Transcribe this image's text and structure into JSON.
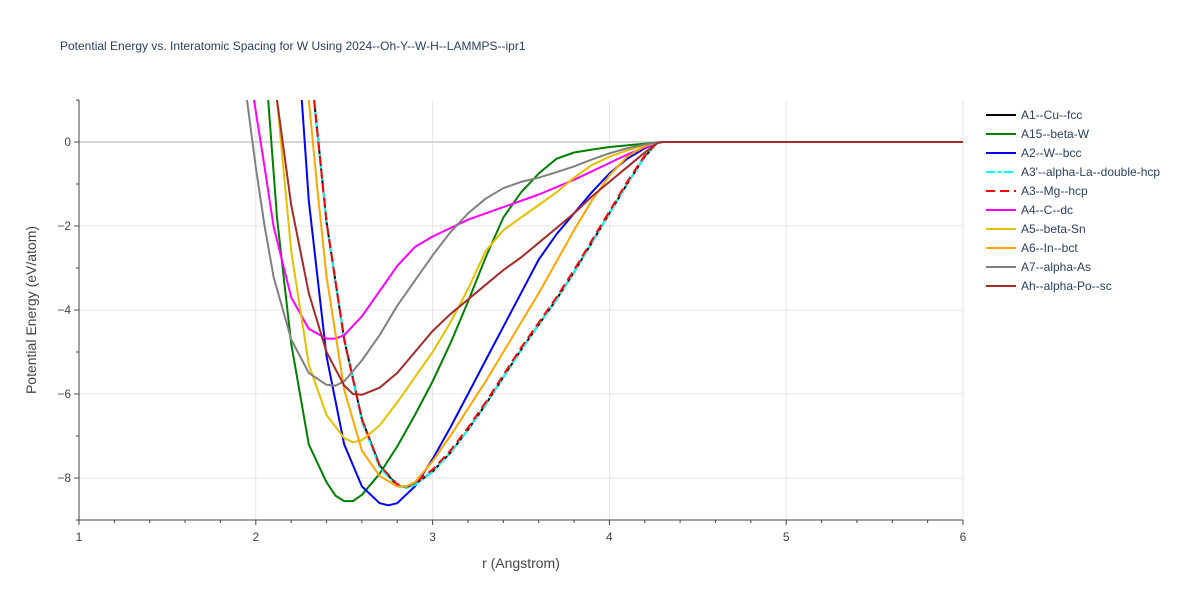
{
  "chart_data": {
    "type": "line",
    "title": "Potential Energy vs. Interatomic Spacing for W Using 2024--Oh-Y--W-H--LAMMPS--ipr1",
    "xlabel": "r (Angstrom)",
    "ylabel": "Potential Energy (eV/atom)",
    "xlim": [
      1,
      6
    ],
    "ylim": [
      -9,
      1
    ],
    "x_ticks": [
      1,
      2,
      3,
      4,
      5,
      6
    ],
    "y_ticks": [
      -8,
      -6,
      -4,
      -2,
      0
    ],
    "y_tick_labels": [
      "−8",
      "−6",
      "−4",
      "−2",
      "0"
    ],
    "grid": true,
    "legend_position": "right",
    "series": [
      {
        "name": "A1--Cu--fcc",
        "color": "#000000",
        "dash": "solid",
        "x": [
          2.33,
          2.4,
          2.5,
          2.6,
          2.7,
          2.8,
          2.85,
          2.9,
          3.0,
          3.1,
          3.2,
          3.3,
          3.4,
          3.5,
          3.6,
          3.7,
          3.8,
          3.9,
          4.0,
          4.1,
          4.2,
          4.27,
          4.3,
          6.0
        ],
        "y": [
          1.0,
          -1.9,
          -4.7,
          -6.6,
          -7.7,
          -8.18,
          -8.22,
          -8.15,
          -7.85,
          -7.4,
          -6.85,
          -6.25,
          -5.6,
          -4.95,
          -4.35,
          -3.75,
          -3.1,
          -2.4,
          -1.7,
          -1.0,
          -0.35,
          -0.02,
          0.0,
          0.0
        ]
      },
      {
        "name": "A15--beta-W",
        "color": "#008000",
        "dash": "solid",
        "x": [
          2.07,
          2.12,
          2.2,
          2.3,
          2.4,
          2.45,
          2.5,
          2.55,
          2.6,
          2.7,
          2.8,
          2.9,
          3.0,
          3.1,
          3.2,
          3.3,
          3.4,
          3.5,
          3.6,
          3.7,
          3.8,
          3.9,
          4.0,
          4.1,
          4.2,
          4.27,
          4.3,
          6.0
        ],
        "y": [
          1.0,
          -1.8,
          -4.8,
          -7.2,
          -8.1,
          -8.42,
          -8.55,
          -8.55,
          -8.4,
          -7.9,
          -7.25,
          -6.5,
          -5.7,
          -4.8,
          -3.8,
          -2.75,
          -1.8,
          -1.2,
          -0.75,
          -0.4,
          -0.25,
          -0.18,
          -0.12,
          -0.08,
          -0.04,
          -0.01,
          0.0,
          0.0
        ]
      },
      {
        "name": "A2--W--bcc",
        "color": "#0000ff",
        "dash": "solid",
        "x": [
          2.26,
          2.3,
          2.4,
          2.5,
          2.6,
          2.7,
          2.75,
          2.8,
          2.9,
          3.0,
          3.1,
          3.2,
          3.3,
          3.4,
          3.5,
          3.6,
          3.7,
          3.8,
          3.9,
          4.0,
          4.1,
          4.2,
          4.27,
          4.3,
          6.0
        ],
        "y": [
          1.0,
          -1.4,
          -5.1,
          -7.2,
          -8.2,
          -8.6,
          -8.65,
          -8.6,
          -8.2,
          -7.55,
          -6.8,
          -6.0,
          -5.2,
          -4.4,
          -3.6,
          -2.8,
          -2.2,
          -1.7,
          -1.2,
          -0.75,
          -0.4,
          -0.15,
          -0.02,
          0.0,
          0.0
        ]
      },
      {
        "name": "A3'--alpha-La--double-hcp",
        "color": "#00ffff",
        "dash": "dashdot",
        "x": [
          2.33,
          2.4,
          2.5,
          2.6,
          2.7,
          2.8,
          2.85,
          2.9,
          3.0,
          3.1,
          3.2,
          3.3,
          3.4,
          3.5,
          3.6,
          3.7,
          3.8,
          3.9,
          4.0,
          4.1,
          4.2,
          4.27,
          4.3,
          6.0
        ],
        "y": [
          1.0,
          -1.9,
          -4.7,
          -6.65,
          -7.75,
          -8.2,
          -8.24,
          -8.17,
          -7.85,
          -7.4,
          -6.85,
          -6.25,
          -5.6,
          -4.95,
          -4.35,
          -3.75,
          -3.1,
          -2.4,
          -1.7,
          -1.0,
          -0.35,
          -0.02,
          0.0,
          0.0
        ]
      },
      {
        "name": "A3--Mg--hcp",
        "color": "#ff0000",
        "dash": "dash",
        "x": [
          2.33,
          2.4,
          2.5,
          2.6,
          2.7,
          2.8,
          2.85,
          2.9,
          3.0,
          3.1,
          3.2,
          3.3,
          3.4,
          3.5,
          3.6,
          3.7,
          3.8,
          3.9,
          4.0,
          4.1,
          4.2,
          4.27,
          4.3,
          6.0
        ],
        "y": [
          1.0,
          -1.9,
          -4.7,
          -6.6,
          -7.7,
          -8.15,
          -8.2,
          -8.12,
          -7.8,
          -7.35,
          -6.8,
          -6.2,
          -5.55,
          -4.9,
          -4.3,
          -3.7,
          -3.05,
          -2.35,
          -1.65,
          -0.95,
          -0.32,
          -0.02,
          0.0,
          0.0
        ]
      },
      {
        "name": "A4--C--dc",
        "color": "#ff00ff",
        "dash": "solid",
        "x": [
          1.99,
          2.05,
          2.1,
          2.2,
          2.3,
          2.4,
          2.45,
          2.5,
          2.6,
          2.7,
          2.8,
          2.9,
          3.0,
          3.1,
          3.2,
          3.4,
          3.6,
          3.8,
          4.0,
          4.1,
          4.2,
          4.27,
          4.3,
          6.0
        ],
        "y": [
          1.0,
          -0.6,
          -2.0,
          -3.7,
          -4.45,
          -4.68,
          -4.68,
          -4.6,
          -4.15,
          -3.55,
          -2.95,
          -2.5,
          -2.25,
          -2.05,
          -1.85,
          -1.55,
          -1.25,
          -0.9,
          -0.5,
          -0.3,
          -0.13,
          -0.02,
          0.0,
          0.0
        ]
      },
      {
        "name": "A5--beta-Sn",
        "color": "#e6c000",
        "dash": "solid",
        "x": [
          2.12,
          2.2,
          2.3,
          2.4,
          2.5,
          2.55,
          2.6,
          2.7,
          2.8,
          2.9,
          3.0,
          3.1,
          3.2,
          3.3,
          3.4,
          3.5,
          3.6,
          3.7,
          3.8,
          3.9,
          4.0,
          4.1,
          4.2,
          4.27,
          4.3,
          6.0
        ],
        "y": [
          1.0,
          -2.6,
          -5.3,
          -6.5,
          -7.05,
          -7.15,
          -7.1,
          -6.75,
          -6.2,
          -5.6,
          -5.0,
          -4.3,
          -3.5,
          -2.6,
          -2.1,
          -1.8,
          -1.5,
          -1.2,
          -0.85,
          -0.55,
          -0.35,
          -0.2,
          -0.08,
          -0.01,
          0.0,
          0.0
        ]
      },
      {
        "name": "A6--In--bct",
        "color": "#ffa500",
        "dash": "solid",
        "x": [
          2.3,
          2.35,
          2.4,
          2.5,
          2.6,
          2.7,
          2.8,
          2.85,
          2.9,
          3.0,
          3.1,
          3.2,
          3.3,
          3.4,
          3.5,
          3.6,
          3.7,
          3.8,
          3.9,
          4.0,
          4.1,
          4.2,
          4.27,
          4.3,
          6.0
        ],
        "y": [
          1.0,
          -1.2,
          -3.2,
          -5.9,
          -7.35,
          -7.95,
          -8.2,
          -8.2,
          -8.1,
          -7.6,
          -7.0,
          -6.35,
          -5.7,
          -5.0,
          -4.3,
          -3.6,
          -2.85,
          -2.1,
          -1.4,
          -0.8,
          -0.35,
          -0.1,
          -0.01,
          0.0,
          0.0
        ]
      },
      {
        "name": "A7--alpha-As",
        "color": "#808080",
        "dash": "solid",
        "x": [
          1.95,
          2.0,
          2.05,
          2.1,
          2.2,
          2.3,
          2.4,
          2.45,
          2.5,
          2.6,
          2.7,
          2.8,
          2.9,
          3.0,
          3.1,
          3.2,
          3.3,
          3.4,
          3.5,
          3.6,
          3.7,
          3.8,
          3.9,
          4.0,
          4.1,
          4.2,
          4.27,
          4.3,
          6.0
        ],
        "y": [
          1.0,
          -0.6,
          -2.0,
          -3.2,
          -4.7,
          -5.5,
          -5.78,
          -5.8,
          -5.7,
          -5.2,
          -4.6,
          -3.9,
          -3.3,
          -2.7,
          -2.15,
          -1.7,
          -1.35,
          -1.1,
          -0.95,
          -0.85,
          -0.72,
          -0.58,
          -0.42,
          -0.27,
          -0.15,
          -0.06,
          -0.01,
          0.0,
          0.0
        ]
      },
      {
        "name": "Ah--alpha-Po--sc",
        "color": "#a52a2a",
        "dash": "solid",
        "x": [
          2.12,
          2.2,
          2.3,
          2.4,
          2.5,
          2.55,
          2.6,
          2.7,
          2.8,
          2.9,
          3.0,
          3.1,
          3.2,
          3.3,
          3.4,
          3.5,
          3.6,
          3.7,
          3.8,
          3.9,
          4.0,
          4.1,
          4.2,
          4.27,
          4.3,
          6.0
        ],
        "y": [
          1.0,
          -1.5,
          -3.6,
          -5.0,
          -5.8,
          -6.0,
          -6.02,
          -5.85,
          -5.5,
          -5.0,
          -4.5,
          -4.1,
          -3.75,
          -3.4,
          -3.05,
          -2.75,
          -2.4,
          -2.05,
          -1.7,
          -1.3,
          -0.95,
          -0.6,
          -0.25,
          -0.03,
          0.0,
          0.0
        ]
      }
    ]
  }
}
